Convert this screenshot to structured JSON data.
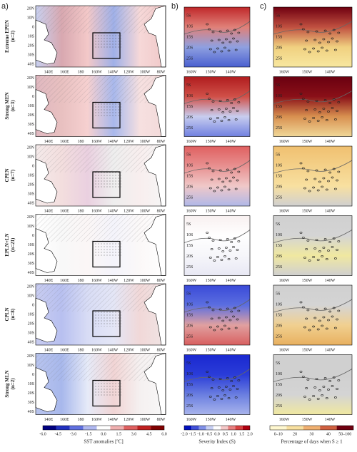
{
  "panel_labels": [
    "a)",
    "b)",
    "c)"
  ],
  "rows": [
    {
      "label": "Extreme EPEN",
      "n": "(n=2)"
    },
    {
      "label": "Strong MEN",
      "n": "(n=3)"
    },
    {
      "label": "CPEN",
      "n": "(n=7)"
    },
    {
      "label": "EPLN+LN",
      "n": "(n=21)"
    },
    {
      "label": "CPLN",
      "n": "(n=8)"
    },
    {
      "label": "Strong MLN",
      "n": "(n=2)"
    }
  ],
  "map_a": {
    "lat_ticks": [
      "20N",
      "10N",
      "0",
      "10S",
      "20S",
      "30S",
      "40S"
    ],
    "lon_ticks": [
      "140E",
      "160E",
      "180",
      "160W",
      "140W",
      "120W",
      "100W",
      "80W"
    ]
  },
  "map_bc": {
    "lat_ticks": [
      "5S",
      "10S",
      "15S",
      "20S",
      "25S"
    ],
    "lon_ticks": [
      "160W",
      "150W",
      "140W"
    ]
  },
  "colorbars": [
    {
      "title": "SST anomalies [ºC]",
      "ticks": [
        "-6.0",
        "-4.5",
        "-3.0",
        "-1.5",
        "0.0",
        "1.5",
        "3.0",
        "4.5",
        "6.0"
      ]
    },
    {
      "title": "Severity Index (S)",
      "ticks": [
        "-2.0",
        "-1.5",
        "-1.0",
        "-0.5",
        "0.0",
        "0.5",
        "1.0",
        "1.5",
        "2.0"
      ]
    },
    {
      "title": "Percentage of days when S ≥ 1",
      "ticks": [
        "0–10",
        "20",
        "30",
        "40",
        "50–100"
      ]
    }
  ]
}
